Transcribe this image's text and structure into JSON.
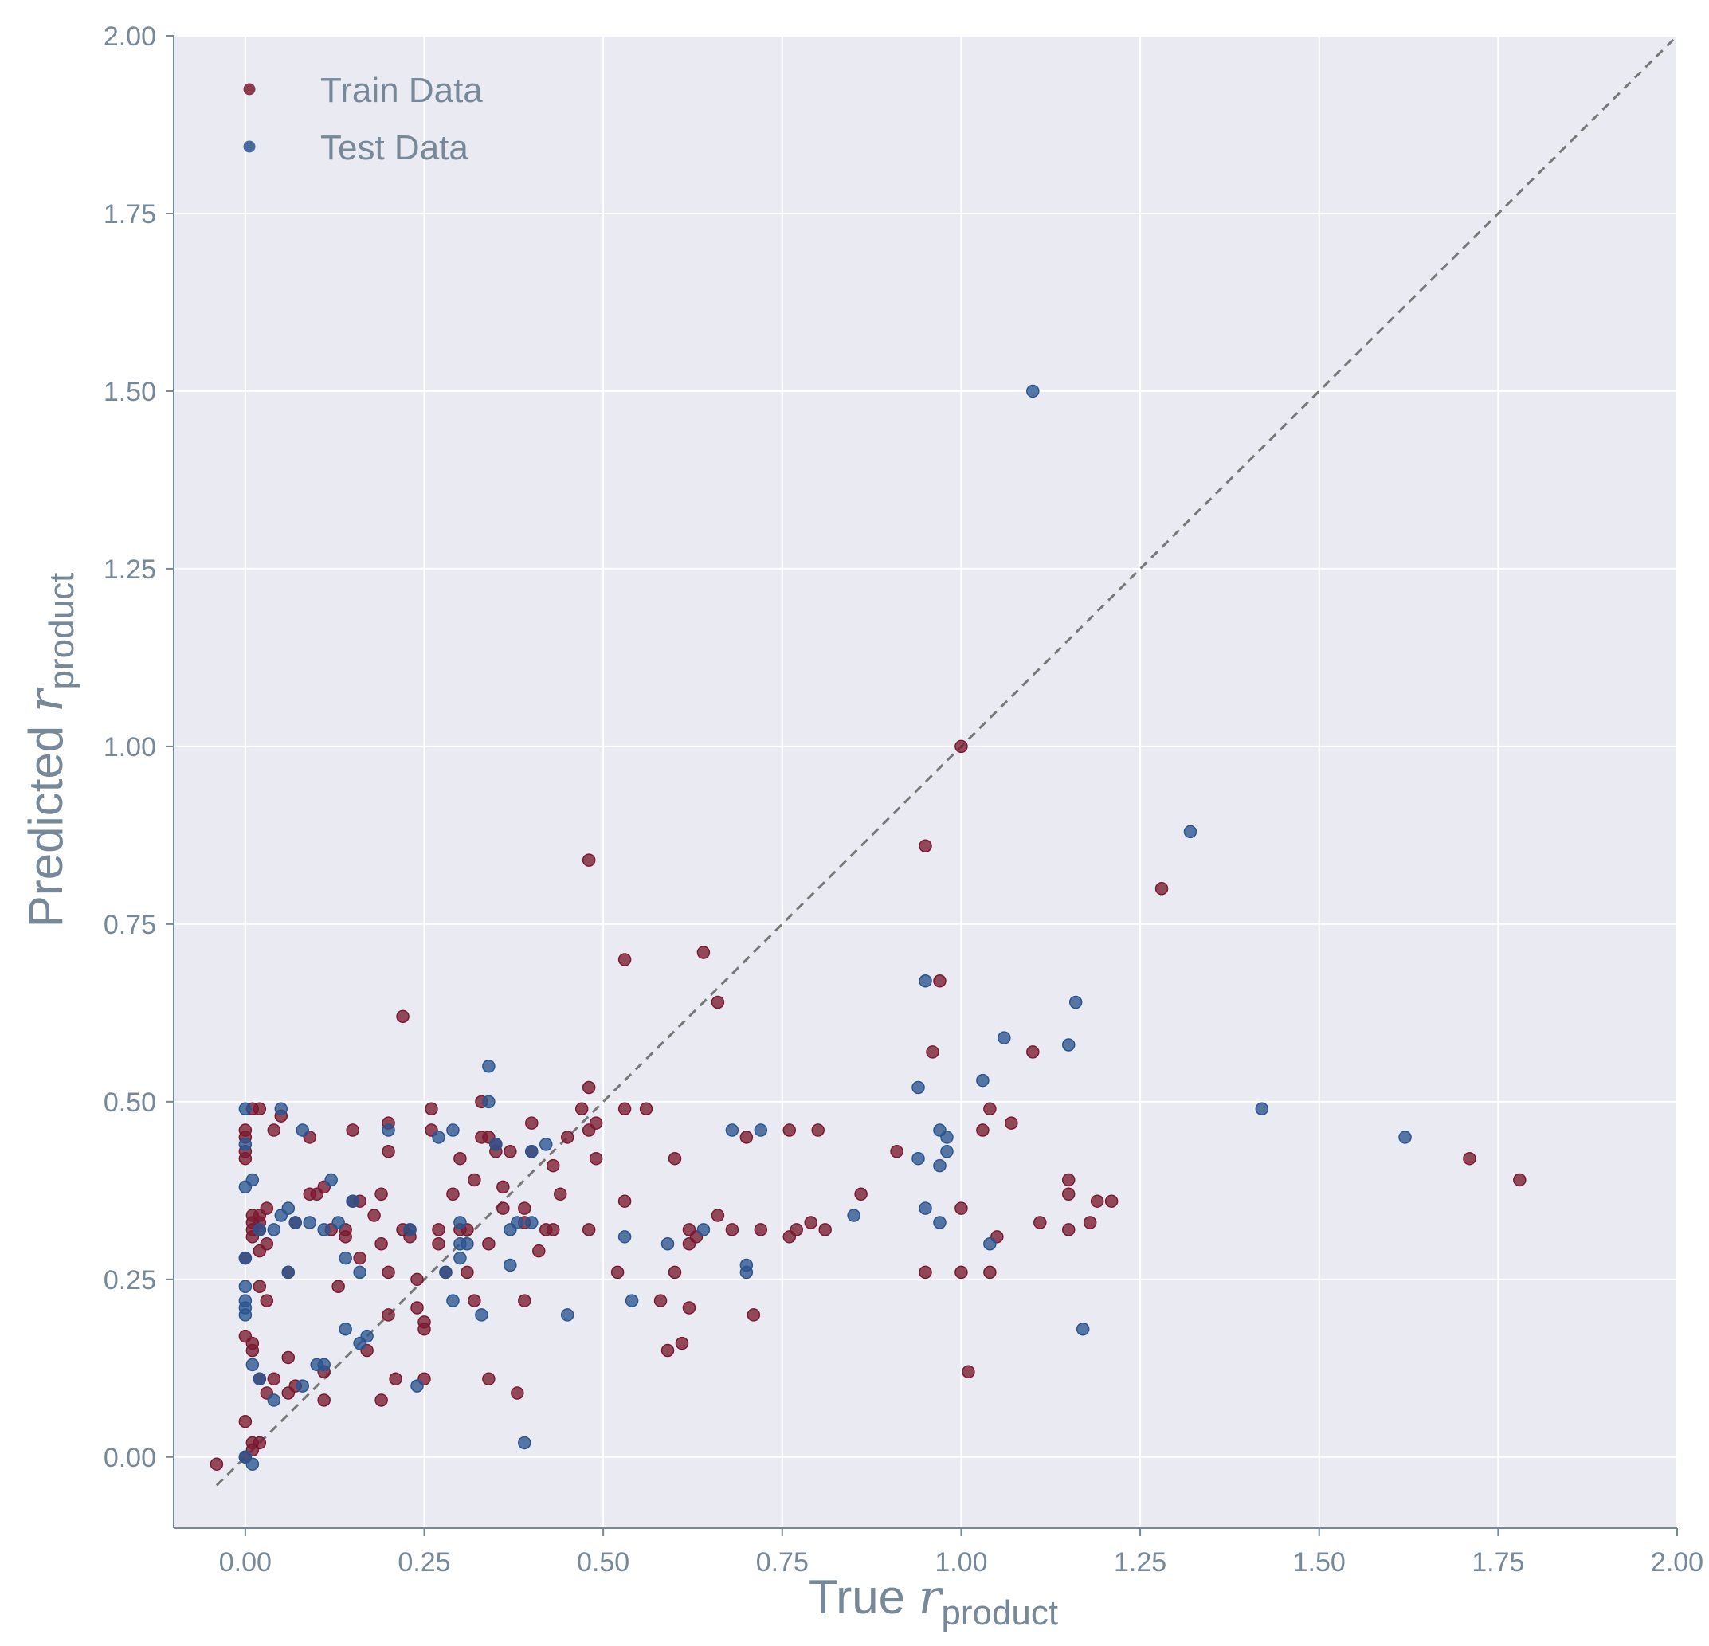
{
  "chart_data": {
    "type": "scatter",
    "xlabel": {
      "prefix": "True ",
      "var": "r",
      "sub": "product"
    },
    "ylabel": {
      "prefix": "Predicted ",
      "var": "r",
      "sub": "product"
    },
    "xlim": [
      -0.1,
      2.0
    ],
    "ylim": [
      -0.1,
      2.0
    ],
    "x_ticks": [
      "0.00",
      "0.25",
      "0.50",
      "0.75",
      "1.00",
      "1.25",
      "1.50",
      "1.75",
      "2.00"
    ],
    "y_ticks": [
      "0.00",
      "0.25",
      "0.50",
      "0.75",
      "1.00",
      "1.25",
      "1.50",
      "1.75",
      "2.00"
    ],
    "grid": true,
    "legend_position": "top-left",
    "reference_line": {
      "style": "dashed",
      "from": [
        -0.04,
        -0.04
      ],
      "to": [
        2.0,
        2.0
      ],
      "color": "#777777"
    },
    "colors": {
      "background": "#eaeaf2",
      "grid": "#ffffff",
      "train": "#7a1a30",
      "test": "#2a5590",
      "axis": "#778899"
    },
    "series": [
      {
        "name": "Train Data",
        "color": "#7a1a30",
        "points": [
          [
            -0.04,
            -0.01
          ],
          [
            0.0,
            0.46
          ],
          [
            0.0,
            0.45
          ],
          [
            0.0,
            0.43
          ],
          [
            0.0,
            0.42
          ],
          [
            0.0,
            0.28
          ],
          [
            0.0,
            0.17
          ],
          [
            0.0,
            0.05
          ],
          [
            0.0,
            0.0
          ],
          [
            0.01,
            0.49
          ],
          [
            0.02,
            0.49
          ],
          [
            0.01,
            0.34
          ],
          [
            0.01,
            0.33
          ],
          [
            0.01,
            0.32
          ],
          [
            0.01,
            0.31
          ],
          [
            0.01,
            0.16
          ],
          [
            0.01,
            0.15
          ],
          [
            0.01,
            0.02
          ],
          [
            0.01,
            0.01
          ],
          [
            0.02,
            0.34
          ],
          [
            0.02,
            0.33
          ],
          [
            0.02,
            0.32
          ],
          [
            0.02,
            0.29
          ],
          [
            0.02,
            0.24
          ],
          [
            0.02,
            0.11
          ],
          [
            0.02,
            0.02
          ],
          [
            0.03,
            0.35
          ],
          [
            0.03,
            0.3
          ],
          [
            0.03,
            0.22
          ],
          [
            0.03,
            0.09
          ],
          [
            0.04,
            0.46
          ],
          [
            0.04,
            0.11
          ],
          [
            0.05,
            0.48
          ],
          [
            0.06,
            0.26
          ],
          [
            0.06,
            0.14
          ],
          [
            0.06,
            0.09
          ],
          [
            0.07,
            0.33
          ],
          [
            0.07,
            0.1
          ],
          [
            0.09,
            0.45
          ],
          [
            0.09,
            0.37
          ],
          [
            0.1,
            0.37
          ],
          [
            0.11,
            0.38
          ],
          [
            0.11,
            0.08
          ],
          [
            0.11,
            0.12
          ],
          [
            0.12,
            0.32
          ],
          [
            0.13,
            0.24
          ],
          [
            0.14,
            0.32
          ],
          [
            0.14,
            0.31
          ],
          [
            0.15,
            0.46
          ],
          [
            0.15,
            0.36
          ],
          [
            0.16,
            0.36
          ],
          [
            0.16,
            0.28
          ],
          [
            0.17,
            0.15
          ],
          [
            0.18,
            0.34
          ],
          [
            0.19,
            0.37
          ],
          [
            0.19,
            0.08
          ],
          [
            0.19,
            0.3
          ],
          [
            0.2,
            0.47
          ],
          [
            0.2,
            0.43
          ],
          [
            0.2,
            0.26
          ],
          [
            0.2,
            0.2
          ],
          [
            0.21,
            0.11
          ],
          [
            0.22,
            0.62
          ],
          [
            0.22,
            0.32
          ],
          [
            0.23,
            0.31
          ],
          [
            0.23,
            0.32
          ],
          [
            0.24,
            0.21
          ],
          [
            0.24,
            0.25
          ],
          [
            0.25,
            0.11
          ],
          [
            0.25,
            0.19
          ],
          [
            0.25,
            0.18
          ],
          [
            0.26,
            0.49
          ],
          [
            0.26,
            0.46
          ],
          [
            0.27,
            0.32
          ],
          [
            0.27,
            0.3
          ],
          [
            0.28,
            0.26
          ],
          [
            0.29,
            0.37
          ],
          [
            0.3,
            0.42
          ],
          [
            0.3,
            0.32
          ],
          [
            0.31,
            0.32
          ],
          [
            0.31,
            0.26
          ],
          [
            0.32,
            0.39
          ],
          [
            0.32,
            0.22
          ],
          [
            0.33,
            0.45
          ],
          [
            0.33,
            0.5
          ],
          [
            0.34,
            0.45
          ],
          [
            0.34,
            0.3
          ],
          [
            0.34,
            0.11
          ],
          [
            0.35,
            0.44
          ],
          [
            0.35,
            0.43
          ],
          [
            0.36,
            0.35
          ],
          [
            0.36,
            0.38
          ],
          [
            0.37,
            0.43
          ],
          [
            0.38,
            0.09
          ],
          [
            0.39,
            0.35
          ],
          [
            0.39,
            0.33
          ],
          [
            0.39,
            0.22
          ],
          [
            0.4,
            0.47
          ],
          [
            0.4,
            0.43
          ],
          [
            0.41,
            0.29
          ],
          [
            0.42,
            0.32
          ],
          [
            0.43,
            0.32
          ],
          [
            0.43,
            0.41
          ],
          [
            0.44,
            0.37
          ],
          [
            0.45,
            0.45
          ],
          [
            0.48,
            0.84
          ],
          [
            0.48,
            0.52
          ],
          [
            0.47,
            0.49
          ],
          [
            0.48,
            0.46
          ],
          [
            0.49,
            0.47
          ],
          [
            0.49,
            0.42
          ],
          [
            0.48,
            0.32
          ],
          [
            0.52,
            0.26
          ],
          [
            0.53,
            0.7
          ],
          [
            0.53,
            0.49
          ],
          [
            0.53,
            0.36
          ],
          [
            0.56,
            0.49
          ],
          [
            0.58,
            0.22
          ],
          [
            0.59,
            0.15
          ],
          [
            0.6,
            0.42
          ],
          [
            0.6,
            0.26
          ],
          [
            0.61,
            0.16
          ],
          [
            0.62,
            0.32
          ],
          [
            0.62,
            0.3
          ],
          [
            0.63,
            0.31
          ],
          [
            0.62,
            0.21
          ],
          [
            0.64,
            0.71
          ],
          [
            0.66,
            0.64
          ],
          [
            0.66,
            0.34
          ],
          [
            0.68,
            0.32
          ],
          [
            0.7,
            0.45
          ],
          [
            0.71,
            0.2
          ],
          [
            0.72,
            0.32
          ],
          [
            0.76,
            0.46
          ],
          [
            0.76,
            0.31
          ],
          [
            0.77,
            0.32
          ],
          [
            0.79,
            0.33
          ],
          [
            0.8,
            0.46
          ],
          [
            0.81,
            0.32
          ],
          [
            0.86,
            0.37
          ],
          [
            0.91,
            0.43
          ],
          [
            0.95,
            0.86
          ],
          [
            0.95,
            0.26
          ],
          [
            0.96,
            0.57
          ],
          [
            0.97,
            0.67
          ],
          [
            1.0,
            1.0
          ],
          [
            1.0,
            0.35
          ],
          [
            1.0,
            0.26
          ],
          [
            1.01,
            0.12
          ],
          [
            1.03,
            0.46
          ],
          [
            1.04,
            0.49
          ],
          [
            1.04,
            0.26
          ],
          [
            1.05,
            0.31
          ],
          [
            1.07,
            0.47
          ],
          [
            1.1,
            0.57
          ],
          [
            1.11,
            0.33
          ],
          [
            1.15,
            0.39
          ],
          [
            1.15,
            0.37
          ],
          [
            1.15,
            0.32
          ],
          [
            1.18,
            0.33
          ],
          [
            1.19,
            0.36
          ],
          [
            1.21,
            0.36
          ],
          [
            1.28,
            0.8
          ],
          [
            1.71,
            0.42
          ],
          [
            1.78,
            0.39
          ]
        ]
      },
      {
        "name": "Test Data",
        "color": "#2a5590",
        "points": [
          [
            0.0,
            0.49
          ],
          [
            0.0,
            0.44
          ],
          [
            0.0,
            0.38
          ],
          [
            0.0,
            0.28
          ],
          [
            0.0,
            0.24
          ],
          [
            0.0,
            0.22
          ],
          [
            0.0,
            0.21
          ],
          [
            0.0,
            0.2
          ],
          [
            0.0,
            0.0
          ],
          [
            0.01,
            0.39
          ],
          [
            0.01,
            0.13
          ],
          [
            0.01,
            -0.01
          ],
          [
            0.02,
            0.32
          ],
          [
            0.02,
            0.11
          ],
          [
            0.04,
            0.32
          ],
          [
            0.04,
            0.08
          ],
          [
            0.05,
            0.49
          ],
          [
            0.05,
            0.34
          ],
          [
            0.06,
            0.35
          ],
          [
            0.06,
            0.26
          ],
          [
            0.07,
            0.33
          ],
          [
            0.08,
            0.46
          ],
          [
            0.08,
            0.1
          ],
          [
            0.09,
            0.33
          ],
          [
            0.1,
            0.13
          ],
          [
            0.11,
            0.13
          ],
          [
            0.11,
            0.32
          ],
          [
            0.12,
            0.39
          ],
          [
            0.13,
            0.33
          ],
          [
            0.14,
            0.18
          ],
          [
            0.14,
            0.28
          ],
          [
            0.15,
            0.36
          ],
          [
            0.16,
            0.26
          ],
          [
            0.16,
            0.16
          ],
          [
            0.17,
            0.17
          ],
          [
            0.2,
            0.46
          ],
          [
            0.23,
            0.32
          ],
          [
            0.24,
            0.1
          ],
          [
            0.27,
            0.45
          ],
          [
            0.28,
            0.26
          ],
          [
            0.29,
            0.46
          ],
          [
            0.29,
            0.22
          ],
          [
            0.3,
            0.33
          ],
          [
            0.3,
            0.3
          ],
          [
            0.3,
            0.28
          ],
          [
            0.31,
            0.3
          ],
          [
            0.33,
            0.2
          ],
          [
            0.34,
            0.55
          ],
          [
            0.34,
            0.5
          ],
          [
            0.35,
            0.44
          ],
          [
            0.37,
            0.32
          ],
          [
            0.37,
            0.27
          ],
          [
            0.38,
            0.33
          ],
          [
            0.39,
            0.02
          ],
          [
            0.4,
            0.43
          ],
          [
            0.4,
            0.33
          ],
          [
            0.42,
            0.44
          ],
          [
            0.45,
            0.2
          ],
          [
            0.53,
            0.31
          ],
          [
            0.54,
            0.22
          ],
          [
            0.59,
            0.3
          ],
          [
            0.64,
            0.32
          ],
          [
            0.68,
            0.46
          ],
          [
            0.7,
            0.26
          ],
          [
            0.7,
            0.27
          ],
          [
            0.72,
            0.46
          ],
          [
            0.85,
            0.34
          ],
          [
            0.94,
            0.52
          ],
          [
            0.94,
            0.42
          ],
          [
            0.95,
            0.67
          ],
          [
            0.95,
            0.35
          ],
          [
            0.97,
            0.46
          ],
          [
            0.97,
            0.41
          ],
          [
            0.97,
            0.33
          ],
          [
            0.98,
            0.45
          ],
          [
            0.98,
            0.43
          ],
          [
            1.03,
            0.53
          ],
          [
            1.04,
            0.3
          ],
          [
            1.06,
            0.59
          ],
          [
            1.1,
            1.5
          ],
          [
            1.15,
            0.58
          ],
          [
            1.16,
            0.64
          ],
          [
            1.17,
            0.18
          ],
          [
            1.32,
            0.88
          ],
          [
            1.42,
            0.49
          ],
          [
            1.62,
            0.45
          ]
        ]
      }
    ]
  }
}
